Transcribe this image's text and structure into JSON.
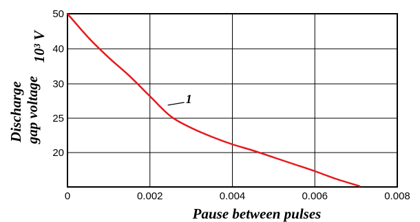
{
  "chart_data": {
    "type": "line",
    "xlabel": "Pause between pulses",
    "ylabel_line1": "Discharge",
    "ylabel_line2": "gap voltage",
    "ylabel_unit": "10³ V",
    "xlim": [
      0,
      0.008
    ],
    "ylim": [
      15,
      50
    ],
    "x_ticks": [
      0,
      0.002,
      0.004,
      0.006,
      0.008
    ],
    "x_tick_labels": [
      "0",
      "0.002",
      "0.004",
      "0.006",
      "0.008"
    ],
    "y_ticks": [
      20,
      25,
      30,
      40,
      50
    ],
    "y_tick_labels": [
      "20",
      "25",
      "30",
      "40",
      "50"
    ],
    "grid": true,
    "series": [
      {
        "color": "#e8171b",
        "x": [
          0,
          0.0005,
          0.001,
          0.0015,
          0.002,
          0.0025,
          0.003,
          0.0035,
          0.004,
          0.0045,
          0.005,
          0.0055,
          0.006,
          0.0065,
          0.0071
        ],
        "y": [
          50,
          43.3,
          37.5,
          32.3,
          28.2,
          25.3,
          23.6,
          22.3,
          21.2,
          20.3,
          19.3,
          18.3,
          17.3,
          16.2,
          15.1
        ]
      }
    ],
    "annotations": [
      {
        "text": "1",
        "x": 0.0025,
        "y": 27.1
      }
    ]
  }
}
